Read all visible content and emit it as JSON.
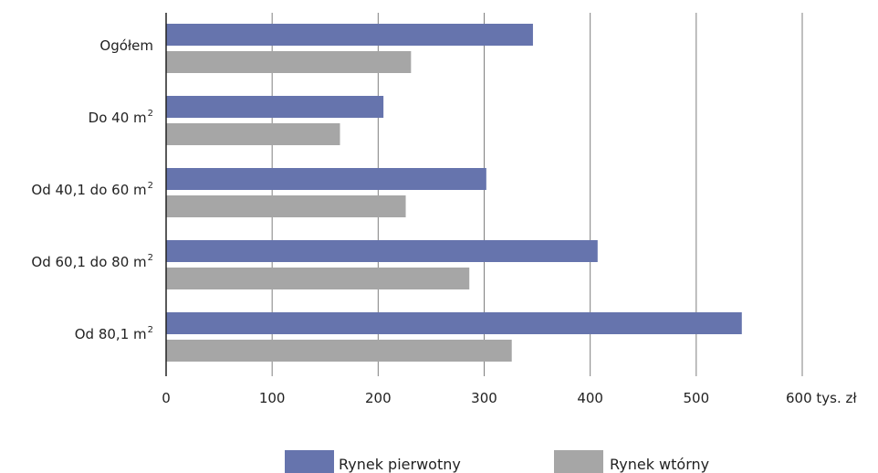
{
  "chart_data": {
    "type": "bar",
    "orientation": "horizontal",
    "categories": [
      {
        "text": "Ogółem",
        "sup": ""
      },
      {
        "text": "Do 40 m",
        "sup": "2"
      },
      {
        "text": "Od 40,1 do 60 m",
        "sup": "2"
      },
      {
        "text": "Od 60,1 do 80 m",
        "sup": "2"
      },
      {
        "text": "Od 80,1 m",
        "sup": "2"
      }
    ],
    "series": [
      {
        "name": "Rynek pierwotny",
        "color": "#6674ad",
        "values": [
          346,
          205,
          302,
          407,
          543
        ]
      },
      {
        "name": "Rynek wtórny",
        "color": "#a6a6a6",
        "values": [
          231,
          164,
          226,
          286,
          326
        ]
      }
    ],
    "xlim": [
      0,
      600
    ],
    "x_ticks": [
      "0",
      "100",
      "200",
      "300",
      "400",
      "500",
      "600 tys. zł"
    ],
    "grid": "vertical",
    "grid_color": "#7f7f7f",
    "legend_position": "bottom"
  }
}
